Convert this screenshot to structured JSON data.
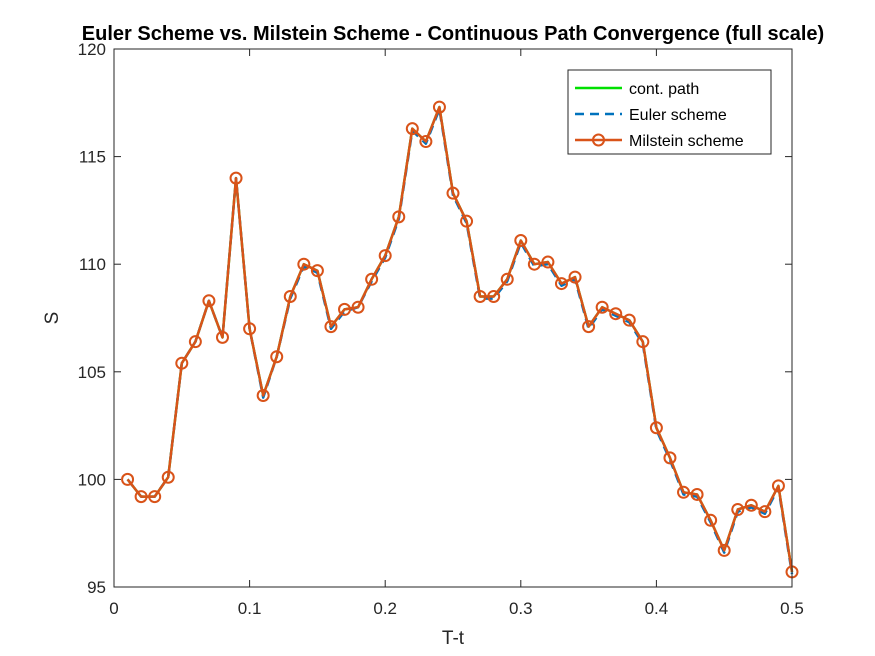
{
  "chart_data": {
    "type": "line",
    "title": "Euler Scheme vs. Milstein Scheme - Continuous Path Convergence (full scale)",
    "xlabel": "T-t",
    "ylabel": "S",
    "xlim": [
      0,
      0.5
    ],
    "ylim": [
      95,
      120
    ],
    "xticks": [
      0,
      0.1,
      0.2,
      0.3,
      0.4,
      0.5
    ],
    "yticks": [
      95,
      100,
      105,
      110,
      115,
      120
    ],
    "xtick_labels": [
      "0",
      "0.1",
      "0.2",
      "0.3",
      "0.4",
      "0.5"
    ],
    "ytick_labels": [
      "95",
      "100",
      "105",
      "110",
      "115",
      "120"
    ],
    "grid": false,
    "legend_position": "top-right",
    "x": [
      0.01,
      0.02,
      0.03,
      0.04,
      0.05,
      0.06,
      0.07,
      0.08,
      0.09,
      0.1,
      0.11,
      0.12,
      0.13,
      0.14,
      0.15,
      0.16,
      0.17,
      0.18,
      0.19,
      0.2,
      0.21,
      0.22,
      0.23,
      0.24,
      0.25,
      0.26,
      0.27,
      0.28,
      0.29,
      0.3,
      0.31,
      0.32,
      0.33,
      0.34,
      0.35,
      0.36,
      0.37,
      0.38,
      0.39,
      0.4,
      0.41,
      0.42,
      0.43,
      0.44,
      0.45,
      0.46,
      0.47,
      0.48,
      0.49,
      0.5
    ],
    "series": [
      {
        "name": "cont. path",
        "color": "#00e000",
        "style": "solid",
        "values": [
          100.0,
          99.2,
          99.2,
          100.1,
          105.4,
          106.4,
          108.3,
          106.6,
          114.0,
          107.0,
          103.9,
          105.7,
          108.5,
          110.0,
          109.7,
          107.1,
          107.9,
          108.0,
          109.3,
          110.4,
          112.2,
          116.3,
          115.7,
          117.3,
          113.3,
          112.0,
          108.5,
          108.5,
          109.3,
          111.1,
          110.0,
          110.1,
          109.1,
          109.4,
          107.1,
          108.0,
          107.7,
          107.4,
          106.4,
          102.4,
          101.0,
          99.4,
          99.3,
          98.1,
          96.7,
          98.6,
          98.8,
          98.5,
          99.7,
          95.7
        ]
      },
      {
        "name": "Euler scheme",
        "color": "#0072bd",
        "style": "dashed",
        "values": [
          100.0,
          99.2,
          99.2,
          100.1,
          105.4,
          106.4,
          108.3,
          106.6,
          114.0,
          107.0,
          103.8,
          105.7,
          108.4,
          109.9,
          109.6,
          107.0,
          107.8,
          108.0,
          109.2,
          110.3,
          112.1,
          116.2,
          115.6,
          117.2,
          113.2,
          111.9,
          108.4,
          108.4,
          109.2,
          111.0,
          109.9,
          110.0,
          109.0,
          109.3,
          107.0,
          107.9,
          107.6,
          107.3,
          106.3,
          102.3,
          100.9,
          99.3,
          99.2,
          98.0,
          96.6,
          98.5,
          98.7,
          98.4,
          99.6,
          95.6
        ]
      },
      {
        "name": "Milstein scheme",
        "color": "#d95319",
        "style": "solid",
        "marker": "circle",
        "values": [
          100.0,
          99.2,
          99.2,
          100.1,
          105.4,
          106.4,
          108.3,
          106.6,
          114.0,
          107.0,
          103.9,
          105.7,
          108.5,
          110.0,
          109.7,
          107.1,
          107.9,
          108.0,
          109.3,
          110.4,
          112.2,
          116.3,
          115.7,
          117.3,
          113.3,
          112.0,
          108.5,
          108.5,
          109.3,
          111.1,
          110.0,
          110.1,
          109.1,
          109.4,
          107.1,
          108.0,
          107.7,
          107.4,
          106.4,
          102.4,
          101.0,
          99.4,
          99.3,
          98.1,
          96.7,
          98.6,
          98.8,
          98.5,
          99.7,
          95.7
        ]
      }
    ]
  }
}
